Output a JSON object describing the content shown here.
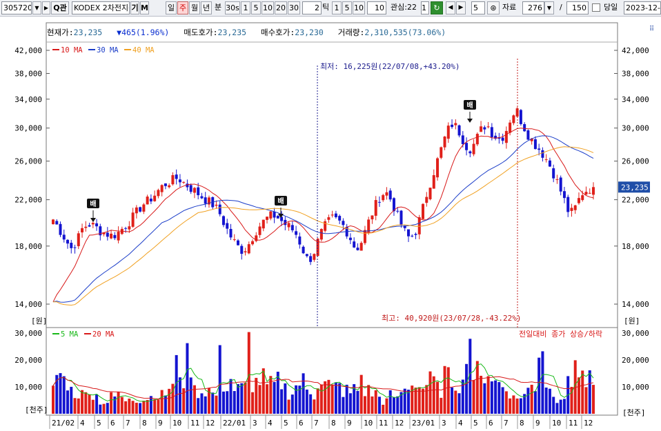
{
  "toolbar": {
    "code": "305720",
    "search_label": "Q관",
    "name": "KODEX 2차전지산",
    "kibon": "기",
    "m_label": "M",
    "periods": [
      "일",
      "주",
      "월",
      "년",
      "분",
      "30s",
      "1",
      "5",
      "10",
      "20",
      "30"
    ],
    "period_input": "2",
    "tick_label": "틱",
    "ticks": [
      "1",
      "5",
      "10"
    ],
    "tick_input": "10",
    "watch_label": "관심:22",
    "watch_value": "1",
    "step_value": "5",
    "data_label": "자료",
    "data_count": "276",
    "slash": "/",
    "data_total": "150",
    "today_label": "당일",
    "date": "2023-12-2"
  },
  "info": {
    "price_label": "현재가:",
    "price": "23,235",
    "change": "465(1.96%)",
    "ask_label": "매도호가:",
    "ask": "23,235",
    "bid_label": "매수호가:",
    "bid": "23,230",
    "volume_label": "거래량:",
    "volume": "2,310,535(73.06%)"
  },
  "chart_data": {
    "type": "candlestick",
    "price_ticks": [
      "42,000",
      "38,000",
      "34,000",
      "30,000",
      "26,000",
      "22,000",
      "18,000",
      "14,000"
    ],
    "price_tick_values": [
      42000,
      38000,
      34000,
      30000,
      26000,
      22000,
      18000,
      14000
    ],
    "price_unit": "[원]",
    "volume_ticks": [
      "30,000",
      "20,000",
      "10,000"
    ],
    "volume_tick_values": [
      30000,
      20000,
      10000
    ],
    "volume_unit": "[천주]",
    "current_price_label": "23,235",
    "current_price": 23235,
    "price_legend": [
      {
        "name": "10 MA",
        "color": "#d81818"
      },
      {
        "name": "30 MA",
        "color": "#1a3cc8"
      },
      {
        "name": "40 MA",
        "color": "#f0a020"
      }
    ],
    "volume_legend": [
      {
        "name": "5 MA",
        "color": "#18b818"
      },
      {
        "name": "20 MA",
        "color": "#d81818"
      }
    ],
    "volume_note": "전일대비 종가 상승/하락",
    "annotation_low": "최저: 16,225원(22/07/08,+43.20%)",
    "annotation_high": "최고: 40,920원(23/07/28,-43.22%)",
    "markers": [
      "배",
      "배",
      "배"
    ],
    "x_labels": [
      "21/02",
      "4",
      "5",
      "6",
      "7",
      "8",
      "9",
      "10",
      "11",
      "12",
      "22/01",
      "3",
      "4",
      "5",
      "6",
      "7",
      "8",
      "9",
      "10",
      "11",
      "12",
      "23/01",
      "3",
      "4",
      "5",
      "6",
      "7",
      "8",
      "9",
      "10",
      "11",
      "12"
    ],
    "colors": {
      "up": "#e0201a",
      "down": "#1414d0",
      "current": "#1f4ea8"
    },
    "weekly_close_path": [
      20200,
      19400,
      18600,
      17800,
      18400,
      19500,
      19800,
      19600,
      19200,
      19000,
      18800,
      19100,
      19600,
      20100,
      20800,
      21500,
      21900,
      22400,
      23100,
      23600,
      23900,
      24200,
      23700,
      23200,
      22800,
      22300,
      21900,
      21500,
      20800,
      19600,
      18700,
      18000,
      17600,
      18200,
      19100,
      19800,
      20300,
      20600,
      20300,
      19800,
      19500,
      18900,
      17800,
      16800,
      17600,
      18900,
      19800,
      20300,
      20100,
      19600,
      18700,
      17700,
      18400,
      19800,
      21100,
      22300,
      22800,
      21900,
      20500,
      19300,
      18600,
      19100,
      20600,
      22700,
      24600,
      26600,
      28800,
      30600,
      30100,
      28600,
      27300,
      28100,
      29700,
      30600,
      29300,
      28600,
      29100,
      31200,
      32600,
      30600,
      29200,
      28100,
      27300,
      26300,
      25100,
      23600,
      22100,
      20600,
      21300,
      22600,
      23000,
      23235
    ],
    "weekly_volume_path": [
      9000,
      15500,
      13000,
      9000,
      8200,
      7500,
      12000,
      7000,
      5000,
      4500,
      6500,
      8500,
      5500,
      7000,
      6000,
      5500,
      6500,
      9000,
      7000,
      8000,
      10500,
      18000,
      13500,
      20500,
      9000,
      8500,
      9500,
      7500,
      20500,
      11500,
      13500,
      9500,
      10000,
      28000,
      12000,
      13500,
      10500,
      11000,
      12500,
      10000,
      8500,
      10500,
      12500,
      9000,
      7500,
      13500,
      11500,
      9500,
      10500,
      9000,
      8000,
      9500,
      14500,
      9000,
      8000,
      6500,
      5000,
      7000,
      5500,
      9000,
      11500,
      13500,
      10500,
      11500,
      12500,
      9500,
      15000,
      13500,
      12500,
      11000,
      30000,
      15500,
      12500,
      17000,
      15000,
      12000,
      10500,
      9000,
      6000,
      7500,
      9000,
      11000,
      27000,
      12500,
      9000,
      6500,
      7000,
      11000,
      27500,
      14500,
      12500,
      11500
    ]
  }
}
